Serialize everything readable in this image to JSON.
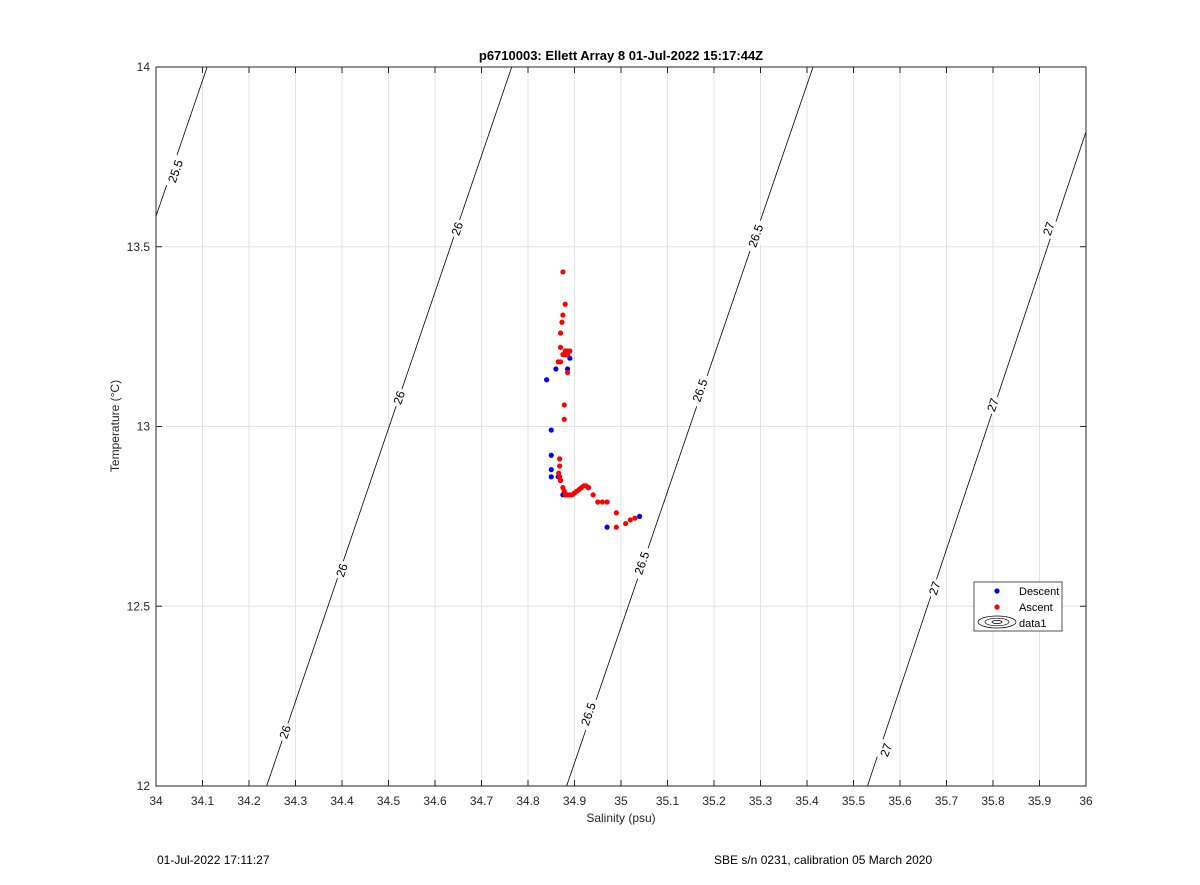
{
  "chart_data": {
    "type": "scatter",
    "title": "p6710003: Ellett Array 8 01-Jul-2022 15:17:44Z",
    "xlabel": "Salinity (psu)",
    "ylabel": "Temperature (°C)",
    "xlim": [
      34,
      36
    ],
    "ylim": [
      12,
      14
    ],
    "xticks": [
      "34",
      "34.1",
      "34.2",
      "34.3",
      "34.4",
      "34.5",
      "34.6",
      "34.7",
      "34.8",
      "34.9",
      "35",
      "35.1",
      "35.2",
      "35.3",
      "35.4",
      "35.5",
      "35.6",
      "35.7",
      "35.8",
      "35.9",
      "36"
    ],
    "yticks": [
      "12",
      "12.5",
      "13",
      "13.5",
      "14"
    ],
    "grid": true,
    "legend_position": "right",
    "series": [
      {
        "name": "Descent",
        "color": "#0000ff",
        "points": [
          [
            34.84,
            13.13
          ],
          [
            34.85,
            12.99
          ],
          [
            34.85,
            12.92
          ],
          [
            34.85,
            12.88
          ],
          [
            34.85,
            12.86
          ],
          [
            34.86,
            13.16
          ],
          [
            34.865,
            12.86
          ],
          [
            34.87,
            12.85
          ],
          [
            34.875,
            12.81
          ],
          [
            34.88,
            12.81
          ],
          [
            34.88,
            13.2
          ],
          [
            34.885,
            13.16
          ],
          [
            34.89,
            13.19
          ],
          [
            34.93,
            12.83
          ],
          [
            34.97,
            12.72
          ],
          [
            35.04,
            12.75
          ]
        ]
      },
      {
        "name": "Ascent",
        "color": "#ff0000",
        "points": [
          [
            34.875,
            13.43
          ],
          [
            34.88,
            13.34
          ],
          [
            34.875,
            13.31
          ],
          [
            34.873,
            13.29
          ],
          [
            34.87,
            13.26
          ],
          [
            34.87,
            13.22
          ],
          [
            34.865,
            13.18
          ],
          [
            34.87,
            13.18
          ],
          [
            34.875,
            13.2
          ],
          [
            34.88,
            13.21
          ],
          [
            34.885,
            13.21
          ],
          [
            34.89,
            13.21
          ],
          [
            34.885,
            13.2
          ],
          [
            34.885,
            13.15
          ],
          [
            34.878,
            13.06
          ],
          [
            34.878,
            13.02
          ],
          [
            34.868,
            12.91
          ],
          [
            34.868,
            12.89
          ],
          [
            34.866,
            12.87
          ],
          [
            34.868,
            12.86
          ],
          [
            34.87,
            12.85
          ],
          [
            34.875,
            12.83
          ],
          [
            34.878,
            12.82
          ],
          [
            34.88,
            12.81
          ],
          [
            34.885,
            12.81
          ],
          [
            34.89,
            12.81
          ],
          [
            34.895,
            12.81
          ],
          [
            34.9,
            12.815
          ],
          [
            34.905,
            12.82
          ],
          [
            34.91,
            12.825
          ],
          [
            34.915,
            12.83
          ],
          [
            34.92,
            12.835
          ],
          [
            34.925,
            12.835
          ],
          [
            34.93,
            12.83
          ],
          [
            34.94,
            12.81
          ],
          [
            34.95,
            12.79
          ],
          [
            34.96,
            12.79
          ],
          [
            34.97,
            12.79
          ],
          [
            34.99,
            12.76
          ],
          [
            34.99,
            12.72
          ],
          [
            35.01,
            12.73
          ],
          [
            35.02,
            12.74
          ],
          [
            35.03,
            12.745
          ]
        ]
      }
    ],
    "contours": [
      {
        "label": "25.5",
        "points": [
          [
            34.0,
            13.585
          ],
          [
            34.11,
            14.0
          ]
        ],
        "labels_at": [
          [
            34.042,
            13.71
          ]
        ]
      },
      {
        "label": "26",
        "points": [
          [
            34.238,
            12.0
          ],
          [
            34.765,
            14.0
          ]
        ],
        "labels_at": [
          [
            34.278,
            12.15
          ],
          [
            34.4,
            12.6
          ],
          [
            34.523,
            13.08
          ],
          [
            34.648,
            13.55
          ]
        ]
      },
      {
        "label": "26.5",
        "points": [
          [
            34.883,
            12.0
          ],
          [
            35.413,
            14.0
          ]
        ],
        "labels_at": [
          [
            34.93,
            12.2
          ],
          [
            35.045,
            12.62
          ],
          [
            35.17,
            13.1
          ],
          [
            35.29,
            13.53
          ]
        ]
      },
      {
        "label": "27",
        "points": [
          [
            35.53,
            12.0
          ],
          [
            36.0,
            13.82
          ]
        ],
        "labels_at": [
          [
            35.57,
            12.1
          ],
          [
            35.675,
            12.55
          ],
          [
            35.8,
            13.06
          ],
          [
            35.92,
            13.55
          ]
        ]
      }
    ],
    "legend": [
      "Descent",
      "Ascent",
      "data1"
    ]
  },
  "footer": {
    "left": "01-Jul-2022 17:11:27",
    "right": "SBE s/n 0231, calibration 05 March 2020"
  }
}
